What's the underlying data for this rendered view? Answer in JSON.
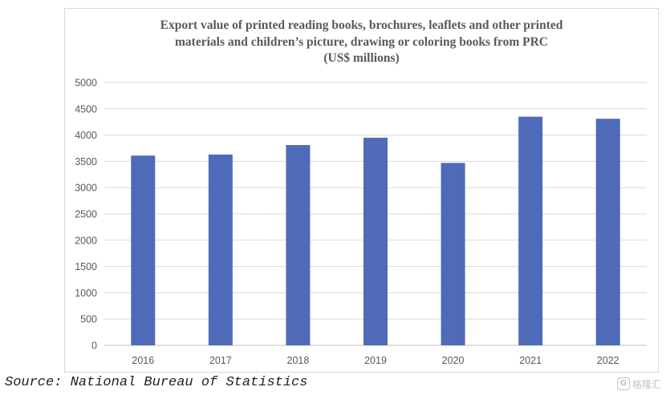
{
  "chart_data": {
    "type": "bar",
    "title_lines": [
      "Export value of printed reading books, brochures, leaflets and other printed",
      "materials and children’s picture, drawing or coloring books from PRC",
      "(US$ millions)"
    ],
    "categories": [
      "2016",
      "2017",
      "2018",
      "2019",
      "2020",
      "2021",
      "2022"
    ],
    "values": [
      3610,
      3630,
      3810,
      3950,
      3470,
      4350,
      4310
    ],
    "ylim": [
      0,
      5000
    ],
    "yticks": [
      0,
      500,
      1000,
      1500,
      2000,
      2500,
      3000,
      3500,
      4000,
      4500,
      5000
    ],
    "xlabel": "",
    "ylabel": "",
    "grid": true,
    "legend": "none",
    "bar_color": "#4f6bb8"
  },
  "source_note": "Source: National Bureau of Statistics",
  "watermark": {
    "icon": "gelonghui-logo-icon",
    "text": "格隆汇"
  }
}
